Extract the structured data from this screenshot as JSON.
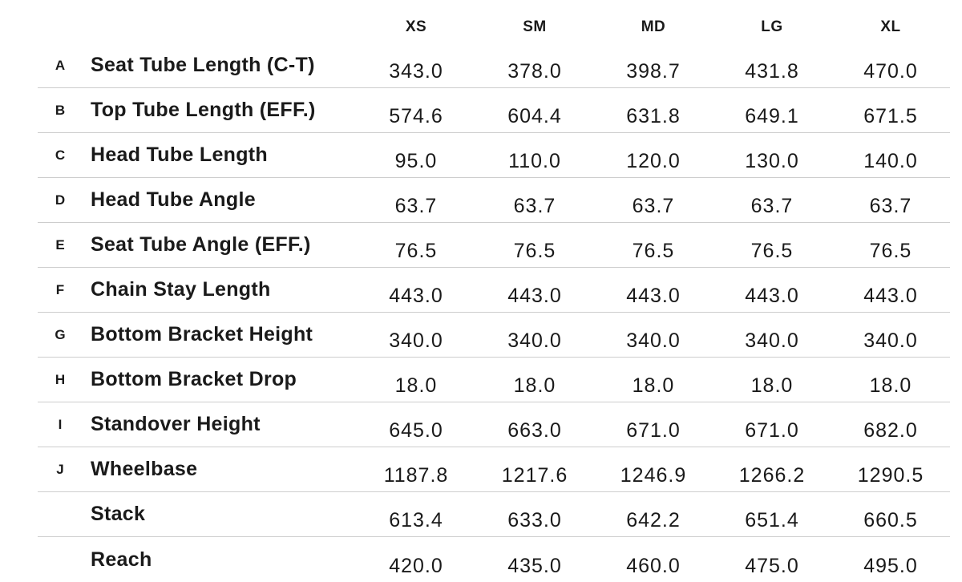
{
  "colors": {
    "text": "#1a1a1a",
    "divider": "#cdcdcd",
    "background": "#ffffff"
  },
  "chart_data": {
    "type": "table",
    "columns": [
      "XS",
      "SM",
      "MD",
      "LG",
      "XL"
    ],
    "series": [
      {
        "letter": "A",
        "name": "Seat Tube Length (C-T)",
        "values": [
          343.0,
          378.0,
          398.7,
          431.8,
          470.0
        ]
      },
      {
        "letter": "B",
        "name": "Top Tube Length (EFF.)",
        "values": [
          574.6,
          604.4,
          631.8,
          649.1,
          671.5
        ]
      },
      {
        "letter": "C",
        "name": "Head Tube Length",
        "values": [
          95.0,
          110.0,
          120.0,
          130.0,
          140.0
        ]
      },
      {
        "letter": "D",
        "name": "Head Tube Angle",
        "values": [
          63.7,
          63.7,
          63.7,
          63.7,
          63.7
        ]
      },
      {
        "letter": "E",
        "name": "Seat Tube Angle (EFF.)",
        "values": [
          76.5,
          76.5,
          76.5,
          76.5,
          76.5
        ]
      },
      {
        "letter": "F",
        "name": "Chain Stay Length",
        "values": [
          443.0,
          443.0,
          443.0,
          443.0,
          443.0
        ]
      },
      {
        "letter": "G",
        "name": "Bottom Bracket Height",
        "values": [
          340.0,
          340.0,
          340.0,
          340.0,
          340.0
        ]
      },
      {
        "letter": "H",
        "name": "Bottom Bracket Drop",
        "values": [
          18.0,
          18.0,
          18.0,
          18.0,
          18.0
        ]
      },
      {
        "letter": "I",
        "name": "Standover Height",
        "values": [
          645.0,
          663.0,
          671.0,
          671.0,
          682.0
        ]
      },
      {
        "letter": "J",
        "name": "Wheelbase",
        "values": [
          1187.8,
          1217.6,
          1246.9,
          1266.2,
          1290.5
        ]
      },
      {
        "letter": "",
        "name": "Stack",
        "values": [
          613.4,
          633.0,
          642.2,
          651.4,
          660.5
        ]
      },
      {
        "letter": "",
        "name": "Reach",
        "values": [
          420.0,
          435.0,
          460.0,
          475.0,
          495.0
        ]
      }
    ],
    "value_format": "one_decimal"
  }
}
